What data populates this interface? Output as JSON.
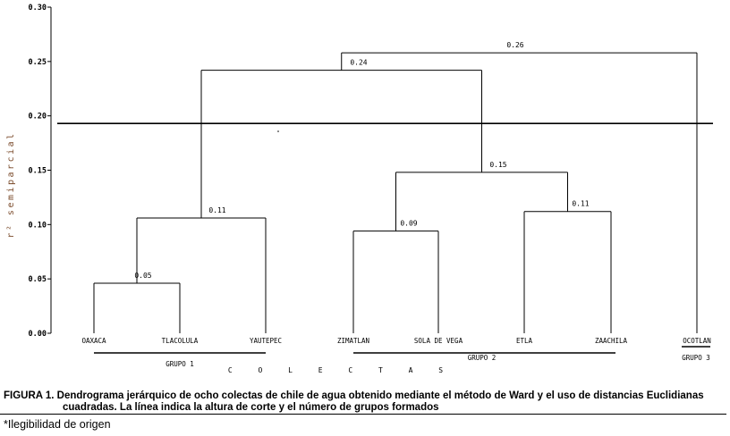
{
  "chart_data": {
    "type": "dendrogram",
    "ylabel": "r² semiparcial",
    "ylim": [
      0,
      0.3
    ],
    "yticks": [
      "0.00",
      "0.05",
      "0.10",
      "0.15",
      "0.20",
      "0.25",
      "0.30"
    ],
    "xlabel": "C O L E C T A S",
    "leaves": [
      "OAXACA",
      "TLACOLULA",
      "YAUTEPEC",
      "ZIMATLAN",
      "SOLA DE VEGA",
      "ETLA",
      "ZAACHILA",
      "OCOTLAN"
    ],
    "merges": [
      {
        "left": "OAXACA",
        "right": "TLACOLULA",
        "height": 0.046,
        "label": "0.05"
      },
      {
        "left": "OAXACA+TLACOLULA",
        "right": "YAUTEPEC",
        "height": 0.106,
        "label": "0.11"
      },
      {
        "left": "ZIMATLAN",
        "right": "SOLA DE VEGA",
        "height": 0.094,
        "label": "0.09"
      },
      {
        "left": "ETLA",
        "right": "ZAACHILA",
        "height": 0.112,
        "label": "0.11"
      },
      {
        "left": "ZIMATLAN+SOLA DE VEGA",
        "right": "ETLA+ZAACHILA",
        "height": 0.148,
        "label": "0.15"
      },
      {
        "left": "GRUPO 1",
        "right": "GRUPO 2",
        "height": 0.242,
        "label": "0.24"
      },
      {
        "left": "GRUPO 1+GRUPO 2",
        "right": "OCOTLAN",
        "height": 0.258,
        "label": "0.26"
      }
    ],
    "cut_height": 0.193,
    "groups": [
      {
        "name": "GRUPO 1",
        "members": [
          "OAXACA",
          "TLACOLULA",
          "YAUTEPEC"
        ]
      },
      {
        "name": "GRUPO 2",
        "members": [
          "ZIMATLAN",
          "SOLA DE VEGA",
          "ETLA",
          "ZAACHILA"
        ]
      },
      {
        "name": "GRUPO 3",
        "members": [
          "OCOTLAN"
        ]
      }
    ],
    "grid": false,
    "legend": "none"
  },
  "caption": {
    "line1": "FIGURA 1. Dendrograma jerárquico de ocho colectas de chile de agua obtenido mediante el método de Ward y el uso de distancias Euclidianas",
    "line2": "cuadradas. La línea  indica la altura de corte y el número de grupos formados"
  },
  "footnote": "*Ilegibilidad de origen"
}
